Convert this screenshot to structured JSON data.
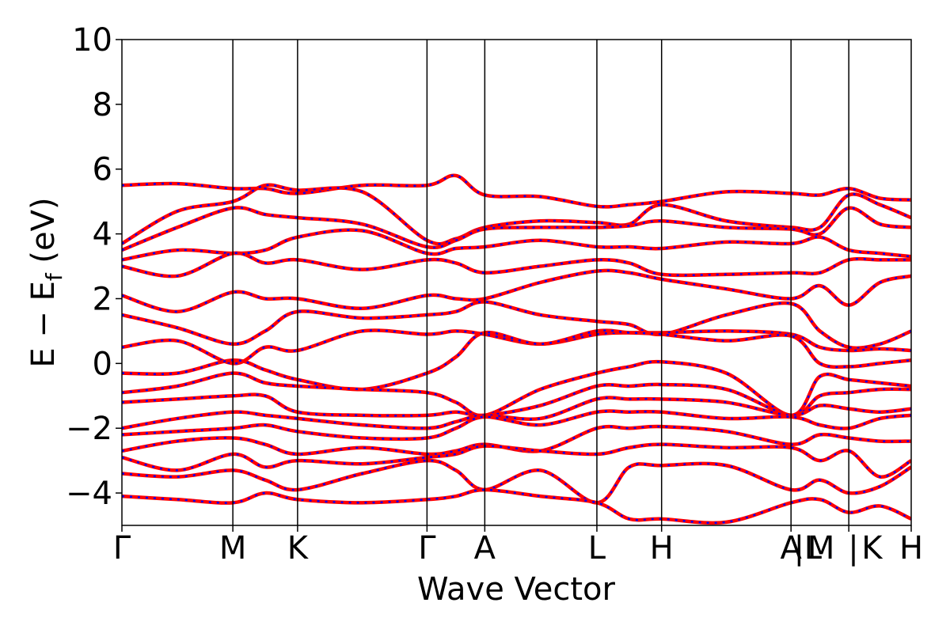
{
  "chart_data": {
    "type": "line",
    "title": "",
    "xlabel": "Wave Vector",
    "ylabel": "E − E",
    "ylabel_sub": "f",
    "ylabel_unit": " (eV)",
    "ylim": [
      -5,
      10
    ],
    "yticks": [
      -4,
      -2,
      0,
      2,
      4,
      6,
      8,
      10
    ],
    "ytick_labels": [
      "−4",
      "−2",
      "0",
      "2",
      "4",
      "6",
      "8",
      "10"
    ],
    "xlim": [
      0,
      6.83
    ],
    "kpoint_positions": [
      0,
      0.96,
      1.52,
      2.64,
      3.14,
      4.11,
      4.67,
      5.79,
      6.29,
      6.83
    ],
    "kpoint_labels": [
      {
        "text": "Γ",
        "x": 0
      },
      {
        "text": "M",
        "x": 0.96
      },
      {
        "text": "K",
        "x": 1.52
      },
      {
        "text": "Γ",
        "x": 2.64
      },
      {
        "text": "A",
        "x": 3.14
      },
      {
        "text": "L",
        "x": 4.11
      },
      {
        "text": "H",
        "x": 4.67
      },
      {
        "text": "A",
        "x": 5.79
      },
      {
        "text": "|",
        "x": 5.86
      },
      {
        "text": "L",
        "x": 5.98
      },
      {
        "text": "M",
        "x": 6.05
      },
      {
        "text": "|",
        "x": 6.33
      },
      {
        "text": "K",
        "x": 6.49
      },
      {
        "text": "H",
        "x": 6.83
      }
    ],
    "series": [
      {
        "name": "",
        "color": "#ff0000",
        "style": "solid"
      },
      {
        "name": "",
        "color": "#0000ff",
        "style": "dashed"
      }
    ],
    "bands": [
      {
        "x": [
          0,
          0.48,
          0.96,
          1.24,
          1.52,
          2.08,
          2.64,
          2.89,
          3.14,
          3.62,
          4.11,
          4.39,
          4.67,
          5.23,
          5.79,
          6.04,
          6.29,
          6.56,
          6.83
        ],
        "y": [
          5.5,
          5.55,
          5.4,
          5.4,
          5.25,
          5.5,
          5.5,
          5.8,
          5.2,
          5.15,
          4.85,
          4.9,
          5.0,
          5.3,
          5.25,
          5.2,
          5.4,
          5.1,
          5.05
        ]
      },
      {
        "x": [
          0,
          0.48,
          0.96,
          1.24,
          1.52,
          2.08,
          2.64,
          2.89,
          3.14,
          3.62,
          4.11,
          4.39,
          4.67,
          5.23,
          5.79,
          6.04,
          6.29,
          6.56,
          6.83
        ],
        "y": [
          3.7,
          4.7,
          5.0,
          5.5,
          5.35,
          5.3,
          3.8,
          3.85,
          4.2,
          4.4,
          4.35,
          4.3,
          4.9,
          4.4,
          4.2,
          4.2,
          5.2,
          4.9,
          4.5
        ]
      },
      {
        "x": [
          0,
          0.48,
          0.96,
          1.24,
          1.52,
          2.08,
          2.64,
          2.89,
          3.14,
          3.62,
          4.11,
          4.39,
          4.67,
          5.23,
          5.79,
          6.04,
          6.29,
          6.56,
          6.83
        ],
        "y": [
          3.5,
          4.2,
          4.8,
          4.6,
          4.5,
          4.3,
          3.6,
          3.8,
          4.15,
          4.2,
          4.2,
          4.25,
          4.4,
          4.2,
          4.15,
          4.0,
          4.8,
          4.3,
          4.2
        ]
      },
      {
        "x": [
          0,
          0.48,
          0.96,
          1.24,
          1.52,
          2.08,
          2.64,
          2.89,
          3.14,
          3.62,
          4.11,
          4.39,
          4.67,
          5.23,
          5.79,
          6.04,
          6.29,
          6.56,
          6.83
        ],
        "y": [
          3.2,
          3.5,
          3.4,
          3.5,
          3.9,
          4.1,
          3.4,
          3.55,
          3.6,
          3.8,
          3.6,
          3.6,
          3.55,
          3.75,
          3.7,
          3.9,
          3.5,
          3.4,
          3.3
        ]
      },
      {
        "x": [
          0,
          0.48,
          0.96,
          1.24,
          1.52,
          2.08,
          2.64,
          2.89,
          3.14,
          3.62,
          4.11,
          4.39,
          4.67,
          5.23,
          5.79,
          6.04,
          6.29,
          6.56,
          6.83
        ],
        "y": [
          3.0,
          2.7,
          3.4,
          3.1,
          3.2,
          2.9,
          3.2,
          3.1,
          2.8,
          3.0,
          3.2,
          3.1,
          2.75,
          2.75,
          2.8,
          2.8,
          3.2,
          3.2,
          3.2
        ]
      },
      {
        "x": [
          0,
          0.48,
          0.96,
          1.24,
          1.52,
          2.08,
          2.64,
          2.89,
          3.14,
          3.62,
          4.11,
          4.39,
          4.67,
          5.23,
          5.79,
          6.04,
          6.29,
          6.56,
          6.83
        ],
        "y": [
          2.1,
          1.6,
          2.2,
          2.0,
          2.0,
          1.7,
          2.1,
          2.0,
          2.0,
          2.5,
          2.85,
          2.8,
          2.6,
          2.3,
          2.0,
          2.4,
          1.8,
          2.5,
          2.7
        ]
      },
      {
        "x": [
          0,
          0.48,
          0.96,
          1.24,
          1.52,
          2.08,
          2.64,
          2.89,
          3.14,
          3.62,
          4.11,
          4.39,
          4.67,
          5.23,
          5.79,
          6.04,
          6.29,
          6.56,
          6.83
        ],
        "y": [
          1.5,
          1.1,
          0.6,
          1.0,
          1.6,
          1.4,
          1.5,
          1.6,
          1.9,
          1.5,
          1.3,
          1.2,
          0.9,
          1.5,
          1.85,
          1.0,
          0.5,
          0.6,
          1.0
        ]
      },
      {
        "x": [
          0,
          0.48,
          0.96,
          1.24,
          1.52,
          2.08,
          2.64,
          2.89,
          3.14,
          3.62,
          4.11,
          4.39,
          4.67,
          5.23,
          5.79,
          6.04,
          6.29,
          6.56,
          6.83
        ],
        "y": [
          0.5,
          0.7,
          0.0,
          0.5,
          0.4,
          1.0,
          0.9,
          1.0,
          0.9,
          0.6,
          0.9,
          0.95,
          0.95,
          1.0,
          0.9,
          0.5,
          0.4,
          0.45,
          0.4
        ]
      },
      {
        "x": [
          0,
          0.48,
          0.96,
          1.24,
          1.52,
          2.08,
          2.64,
          2.89,
          3.14,
          3.62,
          4.11,
          4.39,
          4.67,
          5.23,
          5.79,
          6.04,
          6.29,
          6.56,
          6.83
        ],
        "y": [
          -0.3,
          -0.3,
          0.1,
          -0.2,
          -0.5,
          -0.8,
          -0.3,
          0.2,
          0.95,
          0.6,
          1.0,
          0.95,
          0.9,
          0.7,
          0.85,
          0.0,
          -0.1,
          0.0,
          0.1
        ]
      },
      {
        "x": [
          0,
          0.48,
          0.96,
          1.24,
          1.52,
          2.08,
          2.64,
          2.89,
          3.14,
          3.62,
          4.11,
          4.39,
          4.67,
          5.23,
          5.79,
          6.04,
          6.29,
          6.56,
          6.83
        ],
        "y": [
          -0.9,
          -0.7,
          -0.3,
          -0.6,
          -0.7,
          -0.8,
          -0.9,
          -1.2,
          -1.6,
          -0.8,
          -0.3,
          -0.1,
          0.05,
          -0.3,
          -1.6,
          -0.4,
          -0.5,
          -0.6,
          -0.7
        ]
      },
      {
        "x": [
          0,
          0.48,
          0.96,
          1.24,
          1.52,
          2.08,
          2.64,
          2.89,
          3.14,
          3.62,
          4.11,
          4.39,
          4.67,
          5.23,
          5.79,
          6.04,
          6.29,
          6.56,
          6.83
        ],
        "y": [
          -1.2,
          -1.1,
          -1.0,
          -1.0,
          -1.5,
          -1.6,
          -1.6,
          -1.5,
          -1.6,
          -1.3,
          -0.7,
          -0.7,
          -0.65,
          -0.8,
          -1.6,
          -1.0,
          -0.9,
          -0.8,
          -0.8
        ]
      },
      {
        "x": [
          0,
          0.48,
          0.96,
          1.24,
          1.52,
          2.08,
          2.64,
          2.89,
          3.14,
          3.62,
          4.11,
          4.39,
          4.67,
          5.23,
          5.79,
          6.04,
          6.29,
          6.56,
          6.83
        ],
        "y": [
          -2.0,
          -1.7,
          -1.5,
          -1.6,
          -1.7,
          -1.9,
          -2.0,
          -1.8,
          -1.6,
          -1.7,
          -1.1,
          -1.1,
          -1.1,
          -1.2,
          -1.6,
          -1.3,
          -1.4,
          -1.5,
          -1.4
        ]
      },
      {
        "x": [
          0,
          0.48,
          0.96,
          1.24,
          1.52,
          2.08,
          2.64,
          2.89,
          3.14,
          3.62,
          4.11,
          4.39,
          4.67,
          5.23,
          5.79,
          6.04,
          6.29,
          6.56,
          6.83
        ],
        "y": [
          -2.2,
          -2.1,
          -2.0,
          -1.9,
          -2.1,
          -2.3,
          -2.3,
          -2.0,
          -1.65,
          -1.9,
          -1.5,
          -1.5,
          -1.5,
          -1.7,
          -1.65,
          -1.9,
          -2.0,
          -1.7,
          -1.6
        ]
      },
      {
        "x": [
          0,
          0.48,
          0.96,
          1.24,
          1.52,
          2.08,
          2.64,
          2.89,
          3.14,
          3.62,
          4.11,
          4.39,
          4.67,
          5.23,
          5.79,
          6.04,
          6.29,
          6.56,
          6.83
        ],
        "y": [
          -2.7,
          -2.4,
          -2.3,
          -2.5,
          -2.8,
          -2.6,
          -2.8,
          -2.7,
          -2.5,
          -2.7,
          -2.0,
          -2.0,
          -1.95,
          -2.1,
          -2.5,
          -2.2,
          -2.3,
          -2.4,
          -2.4
        ]
      },
      {
        "x": [
          0,
          0.48,
          0.96,
          1.24,
          1.52,
          2.08,
          2.64,
          2.89,
          3.14,
          3.62,
          4.11,
          4.39,
          4.67,
          5.23,
          5.79,
          6.04,
          6.29,
          6.56,
          6.83
        ],
        "y": [
          -2.9,
          -3.3,
          -2.8,
          -3.2,
          -3.0,
          -3.1,
          -2.9,
          -2.8,
          -2.55,
          -2.7,
          -2.8,
          -2.6,
          -2.5,
          -2.6,
          -2.6,
          -3.0,
          -2.7,
          -3.5,
          -3.0
        ]
      },
      {
        "x": [
          0,
          0.48,
          0.96,
          1.24,
          1.52,
          2.08,
          2.64,
          2.89,
          3.14,
          3.62,
          4.11,
          4.39,
          4.67,
          5.23,
          5.79,
          6.04,
          6.29,
          6.56,
          6.83
        ],
        "y": [
          -3.4,
          -3.5,
          -3.3,
          -3.6,
          -3.9,
          -3.4,
          -3.0,
          -3.3,
          -3.9,
          -3.3,
          -4.3,
          -3.2,
          -3.15,
          -3.15,
          -3.9,
          -3.6,
          -4.0,
          -3.8,
          -3.2
        ]
      },
      {
        "x": [
          0,
          0.48,
          0.96,
          1.24,
          1.52,
          2.08,
          2.64,
          2.89,
          3.14,
          3.62,
          4.11,
          4.39,
          4.67,
          5.23,
          5.79,
          6.04,
          6.29,
          6.56,
          6.83
        ],
        "y": [
          -4.1,
          -4.2,
          -4.3,
          -4.0,
          -4.2,
          -4.3,
          -4.2,
          -4.1,
          -3.9,
          -4.1,
          -4.3,
          -4.8,
          -4.8,
          -4.9,
          -4.3,
          -4.2,
          -4.6,
          -4.4,
          -4.8
        ]
      }
    ]
  }
}
